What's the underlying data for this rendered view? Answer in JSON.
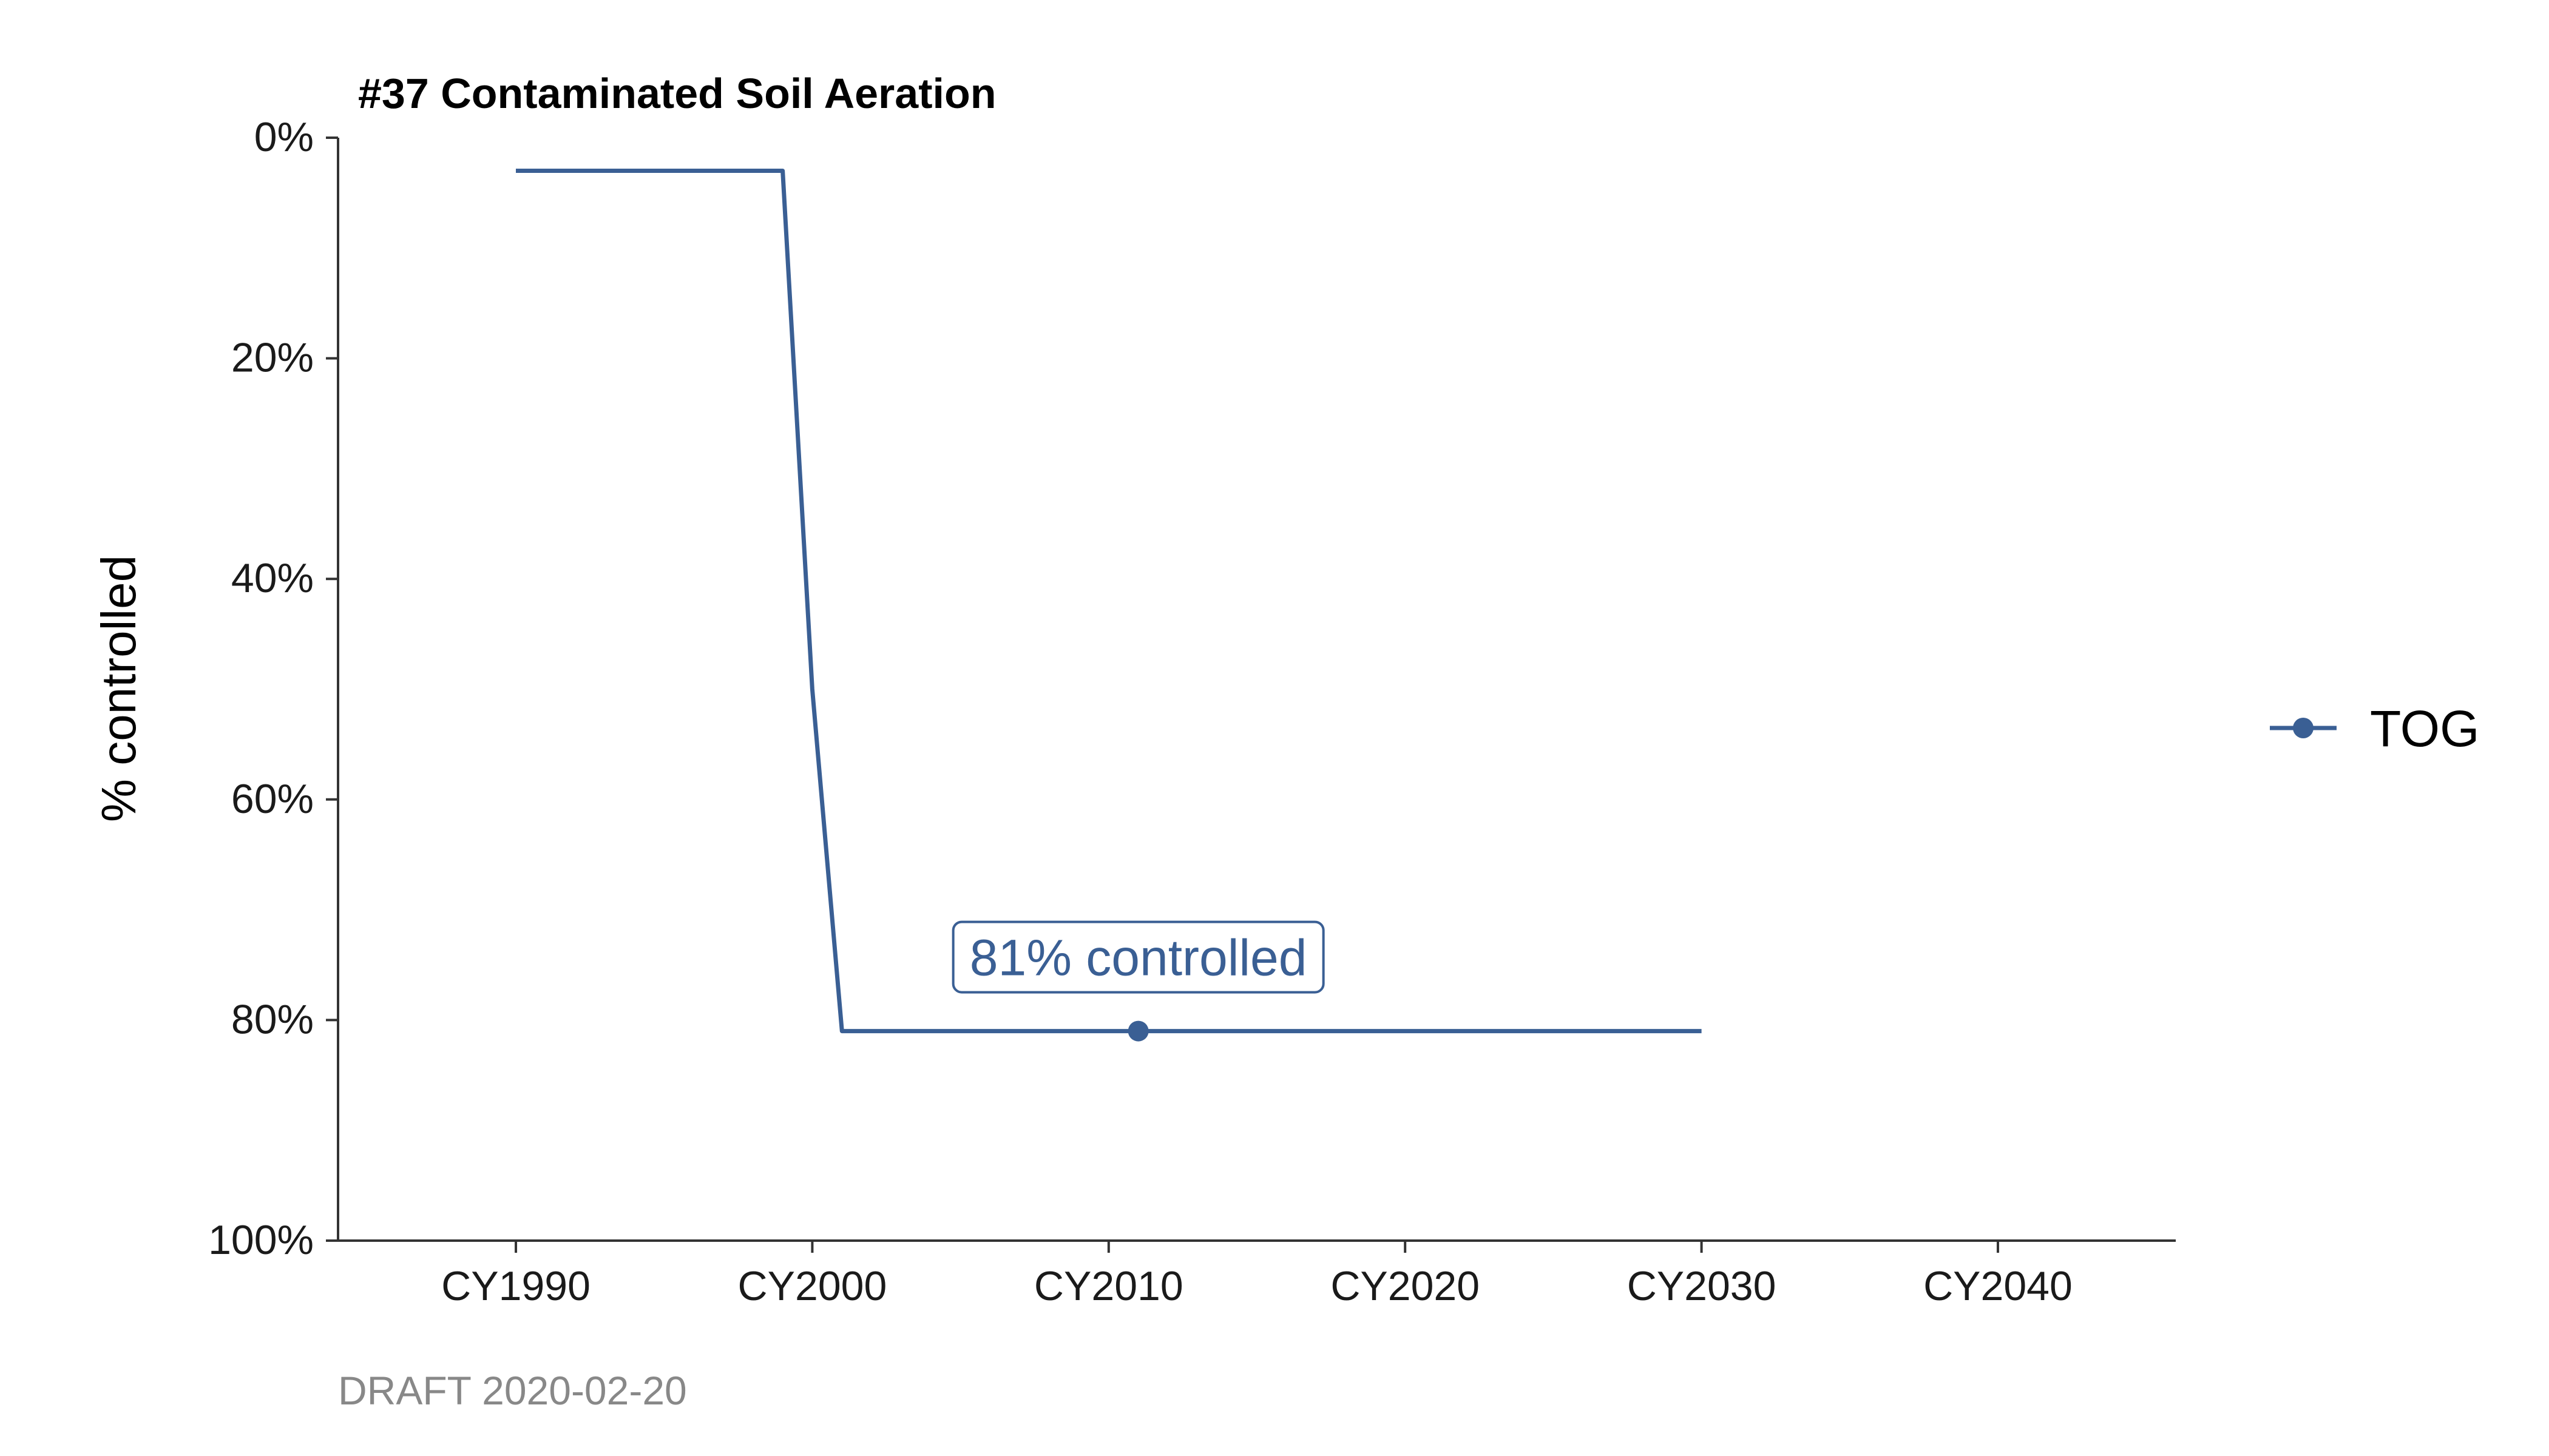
{
  "chart_data": {
    "type": "line",
    "title": "#37 Contaminated Soil Aeration",
    "xlabel": "",
    "ylabel": "% controlled",
    "caption": "DRAFT 2020-02-20",
    "x_ticks": [
      1990,
      2000,
      2010,
      2020,
      2030,
      2040
    ],
    "x_tick_labels": [
      "CY1990",
      "CY2000",
      "CY2010",
      "CY2020",
      "CY2030",
      "CY2040"
    ],
    "xlim": [
      1984,
      2046
    ],
    "y_ticks": [
      0,
      20,
      40,
      60,
      80,
      100
    ],
    "y_tick_labels": [
      "0%",
      "20%",
      "40%",
      "60%",
      "80%",
      "100%"
    ],
    "ylim": [
      0,
      100
    ],
    "y_reversed": true,
    "series": [
      {
        "name": "TOG",
        "color": "#3a5f94",
        "x": [
          1990,
          1999,
          2000,
          2001,
          2030
        ],
        "values": [
          3,
          3,
          50,
          81,
          81
        ]
      }
    ],
    "highlight_point": {
      "x": 2011,
      "value": 81
    },
    "annotation": {
      "text": "81% controlled",
      "x": 2011,
      "value": 81
    },
    "legend": {
      "position": "right",
      "entries": [
        "TOG"
      ]
    }
  }
}
